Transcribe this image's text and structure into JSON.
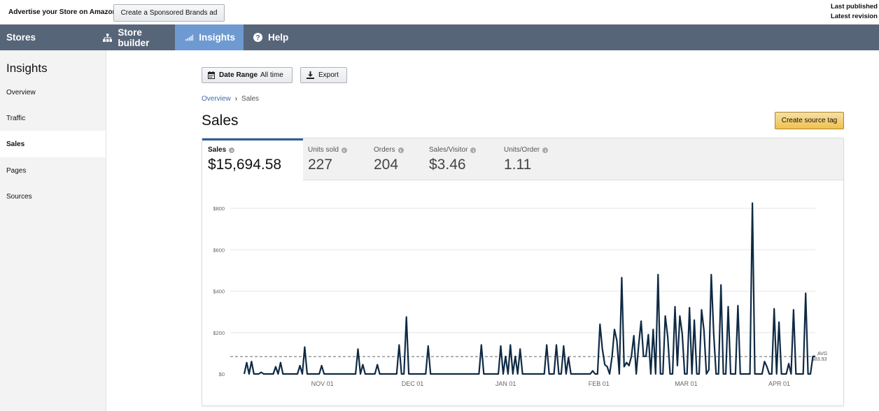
{
  "topbar": {
    "advertise": "Advertise your Store on Amazon",
    "sponsored_btn": "Create a Sponsored Brands ad",
    "last_published": "Last published",
    "latest_revision": "Latest revision"
  },
  "nav": {
    "stores": "Stores",
    "store_builder": "Store builder",
    "insights": "Insights",
    "help": "Help",
    "icons": [
      "sitemap-icon",
      "bar-chart-icon",
      "question-circle-icon"
    ]
  },
  "sidebar": {
    "title": "Insights",
    "items": [
      {
        "label": "Overview"
      },
      {
        "label": "Traffic"
      },
      {
        "label": "Sales",
        "active": true
      },
      {
        "label": "Pages"
      },
      {
        "label": "Sources"
      }
    ]
  },
  "toolbar": {
    "date_range_label": "Date Range",
    "date_range_value": "All time",
    "export": "Export"
  },
  "breadcrumb": {
    "parent": "Overview",
    "sep": "›",
    "current": "Sales"
  },
  "page": {
    "title": "Sales",
    "create_source_tag": "Create source tag"
  },
  "metrics": [
    {
      "label": "Sales",
      "value": "$15,694.58",
      "active": true
    },
    {
      "label": "Units sold",
      "value": "227"
    },
    {
      "label": "Orders",
      "value": "204"
    },
    {
      "label": "Sales/Visitor",
      "value": "$3.46"
    },
    {
      "label": "Units/Order",
      "value": "1.11"
    }
  ],
  "colors": {
    "nav_bg": "#576579",
    "nav_active": "#6e9ad1",
    "line": "#0f2a44",
    "cta": "#f0c14b"
  },
  "chart_data": {
    "type": "line",
    "x_start": "2019-10-06",
    "x_end": "2020-04-13",
    "x_ticks": [
      "NOV 01",
      "DEC 01",
      "JAN 01",
      "FEB 01",
      "MAR 01",
      "APR 01"
    ],
    "y_ticks": [
      "$0",
      "$200",
      "$400",
      "$600",
      "$800"
    ],
    "ylim": [
      0,
      850
    ],
    "grid": true,
    "avg_label": "AVG",
    "avg_value_label": "$83.93",
    "avg": 83.93,
    "series": [
      {
        "values": [
          0,
          55,
          0,
          60,
          0,
          0,
          0,
          8,
          0,
          0,
          0,
          0,
          0,
          35,
          0,
          55,
          0,
          0,
          0,
          0,
          0,
          0,
          0,
          40,
          0,
          130,
          0,
          0,
          0,
          0,
          0,
          0,
          40,
          0,
          0,
          0,
          0,
          0,
          0,
          0,
          0,
          0,
          0,
          0,
          0,
          0,
          0,
          120,
          0,
          45,
          0,
          0,
          0,
          0,
          0,
          45,
          0,
          0,
          0,
          0,
          0,
          0,
          0,
          0,
          140,
          0,
          0,
          275,
          0,
          0,
          0,
          0,
          0,
          0,
          0,
          0,
          135,
          0,
          0,
          0,
          0,
          0,
          0,
          0,
          0,
          0,
          0,
          0,
          0,
          0,
          0,
          0,
          0,
          0,
          0,
          0,
          0,
          0,
          140,
          0,
          0,
          0,
          0,
          0,
          0,
          0,
          135,
          0,
          85,
          0,
          140,
          0,
          85,
          0,
          120,
          0,
          0,
          0,
          0,
          0,
          0,
          0,
          0,
          0,
          0,
          140,
          0,
          0,
          0,
          140,
          0,
          0,
          135,
          0,
          80,
          0,
          0,
          0,
          0,
          0,
          0,
          0,
          0,
          0,
          15,
          0,
          0,
          240,
          120,
          45,
          35,
          0,
          85,
          215,
          160,
          0,
          465,
          35,
          55,
          40,
          85,
          185,
          0,
          140,
          255,
          85,
          85,
          190,
          0,
          215,
          0,
          480,
          0,
          0,
          280,
          180,
          0,
          0,
          325,
          40,
          280,
          195,
          0,
          0,
          320,
          0,
          260,
          0,
          0,
          310,
          210,
          0,
          20,
          480,
          195,
          0,
          0,
          430,
          0,
          0,
          325,
          0,
          0,
          0,
          330,
          0,
          0,
          0,
          0,
          0,
          825,
          0,
          0,
          0,
          0,
          60,
          35,
          0,
          0,
          315,
          0,
          250,
          0,
          0,
          0,
          50,
          0,
          310,
          0,
          0,
          0,
          0,
          390,
          0,
          0,
          85,
          85
        ]
      }
    ]
  }
}
